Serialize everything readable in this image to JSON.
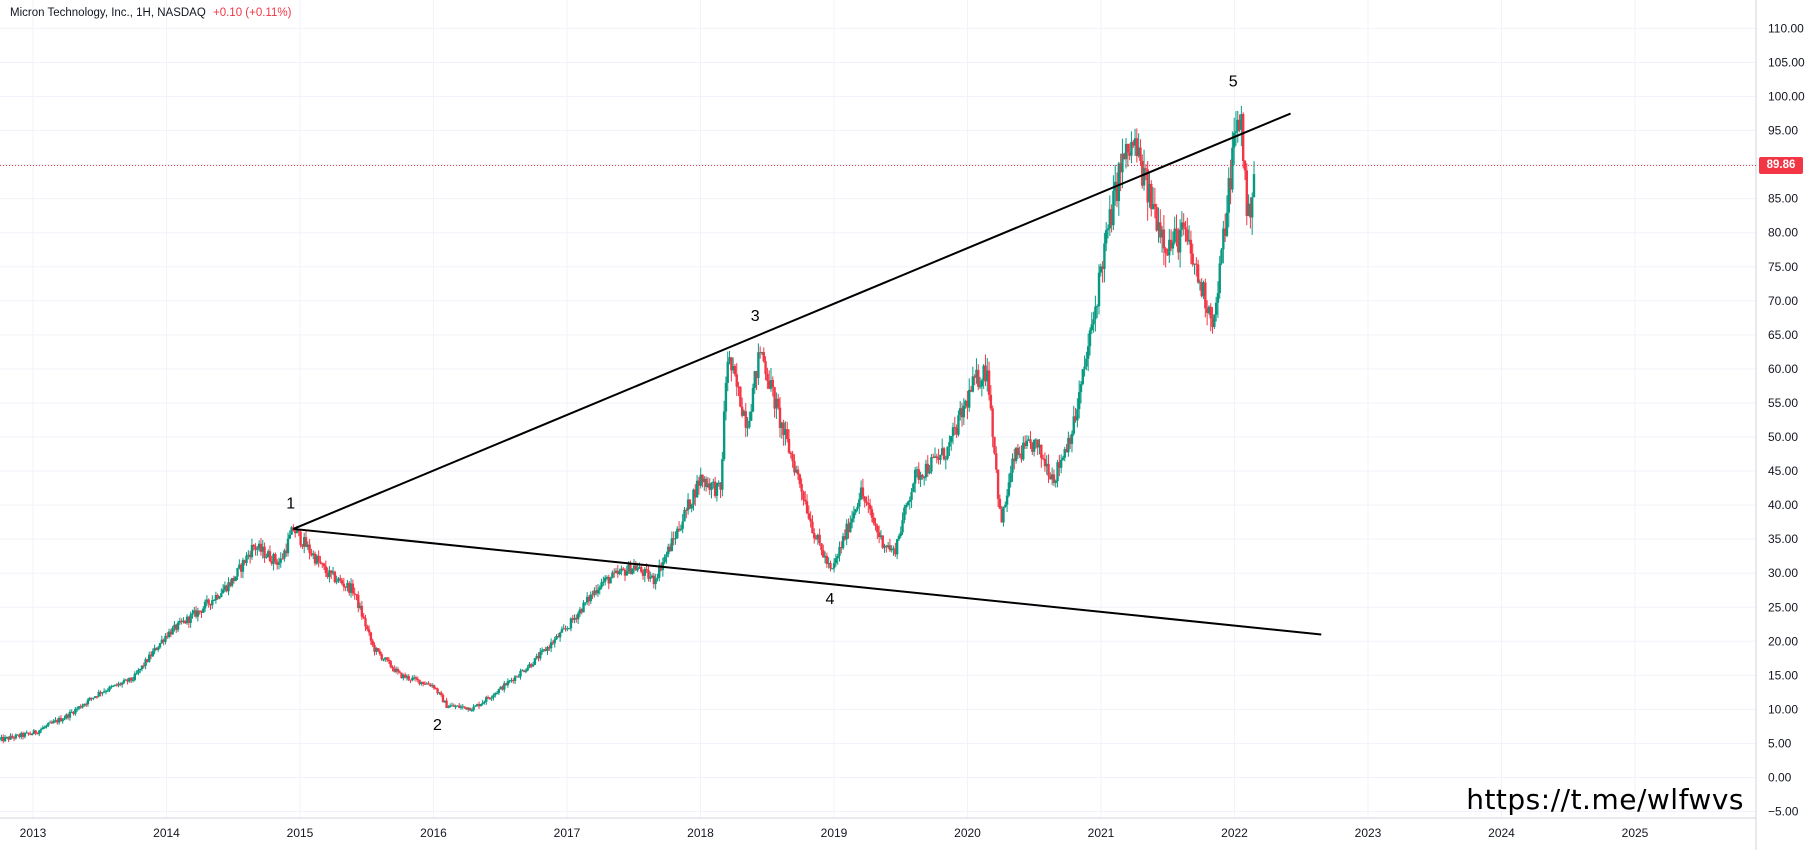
{
  "header": {
    "title": "Micron Technology, Inc., 1H, NASDAQ",
    "change": "+0.10 (+0.11%)"
  },
  "watermark": "https://t.me/wlfwvs",
  "chart_data": {
    "type": "candlestick",
    "x_ticks": [
      "2013",
      "2014",
      "2015",
      "2016",
      "2017",
      "2018",
      "2019",
      "2020",
      "2021",
      "2022",
      "2023",
      "2024",
      "2025"
    ],
    "y_ticks": [
      -5,
      0,
      5,
      10,
      15,
      20,
      25,
      30,
      35,
      40,
      45,
      50,
      55,
      60,
      65,
      70,
      75,
      80,
      85,
      90,
      95,
      100,
      105,
      110
    ],
    "y_tick_labels": [
      "−5.00",
      "0.00",
      "5.00",
      "10.00",
      "15.00",
      "20.00",
      "25.00",
      "30.00",
      "35.00",
      "40.00",
      "45.00",
      "50.00",
      "55.00",
      "60.00",
      "65.00",
      "70.00",
      "75.00",
      "80.00",
      "85.00",
      "90.00",
      "95.00",
      "100.00",
      "105.00",
      "110.00"
    ],
    "ylim": [
      -6.5,
      112.5
    ],
    "xlim": [
      2012.75,
      2026.4
    ],
    "last_price": 89.86,
    "last_price_label": "89.86",
    "colors": {
      "up": "#089981",
      "down": "#f23645",
      "line": "#000000",
      "grid": "#f0f3fa",
      "axis_text": "#131722",
      "price_line": "#f23645"
    },
    "price_path": [
      [
        2012.75,
        5.5
      ],
      [
        2013.0,
        6.5
      ],
      [
        2013.25,
        9.0
      ],
      [
        2013.5,
        12.5
      ],
      [
        2013.75,
        14.5
      ],
      [
        2014.0,
        21.0
      ],
      [
        2014.25,
        24.5
      ],
      [
        2014.5,
        29.0
      ],
      [
        2014.65,
        34.0
      ],
      [
        2014.85,
        31.5
      ],
      [
        2014.95,
        36.5
      ],
      [
        2015.2,
        30.0
      ],
      [
        2015.4,
        27.5
      ],
      [
        2015.55,
        19.0
      ],
      [
        2015.75,
        15.0
      ],
      [
        2016.0,
        13.5
      ],
      [
        2016.1,
        10.5
      ],
      [
        2016.3,
        10.2
      ],
      [
        2016.5,
        13.0
      ],
      [
        2016.75,
        17.0
      ],
      [
        2017.0,
        22.0
      ],
      [
        2017.25,
        28.5
      ],
      [
        2017.5,
        31.0
      ],
      [
        2017.65,
        29.0
      ],
      [
        2017.8,
        35.0
      ],
      [
        2018.0,
        44.0
      ],
      [
        2018.15,
        42.0
      ],
      [
        2018.2,
        62.0
      ],
      [
        2018.35,
        52.0
      ],
      [
        2018.45,
        63.0
      ],
      [
        2018.6,
        52.0
      ],
      [
        2018.75,
        43.0
      ],
      [
        2018.85,
        36.0
      ],
      [
        2018.98,
        30.0
      ],
      [
        2019.2,
        42.0
      ],
      [
        2019.35,
        35.0
      ],
      [
        2019.45,
        33.0
      ],
      [
        2019.6,
        44.0
      ],
      [
        2019.85,
        48.0
      ],
      [
        2020.05,
        58.0
      ],
      [
        2020.15,
        60.0
      ],
      [
        2020.25,
        37.0
      ],
      [
        2020.35,
        47.0
      ],
      [
        2020.5,
        49.0
      ],
      [
        2020.65,
        44.0
      ],
      [
        2020.8,
        52.0
      ],
      [
        2020.95,
        68.0
      ],
      [
        2021.0,
        75.0
      ],
      [
        2021.15,
        90.0
      ],
      [
        2021.25,
        93.0
      ],
      [
        2021.35,
        86.0
      ],
      [
        2021.5,
        78.0
      ],
      [
        2021.62,
        80.0
      ],
      [
        2021.75,
        72.0
      ],
      [
        2021.85,
        67.0
      ],
      [
        2021.95,
        85.0
      ],
      [
        2022.0,
        94.0
      ],
      [
        2022.05,
        97.0
      ],
      [
        2022.1,
        81.0
      ],
      [
        2022.15,
        89.86
      ]
    ],
    "trendlines": [
      {
        "from": [
          2014.95,
          36.5
        ],
        "to": [
          2022.42,
          97.5
        ]
      },
      {
        "from": [
          2014.95,
          36.5
        ],
        "to": [
          2022.65,
          21.0
        ]
      }
    ],
    "wave_labels": [
      {
        "label": "1",
        "x": 2014.93,
        "y": 39.5
      },
      {
        "label": "2",
        "x": 2016.03,
        "y": 7.0
      },
      {
        "label": "3",
        "x": 2018.41,
        "y": 67.0
      },
      {
        "label": "4",
        "x": 2018.97,
        "y": 25.5
      },
      {
        "label": "5",
        "x": 2021.99,
        "y": 101.5
      }
    ]
  }
}
